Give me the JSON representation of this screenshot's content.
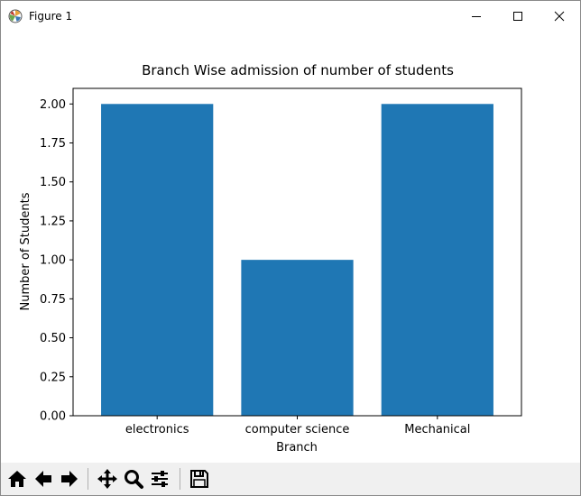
{
  "window": {
    "title": "Figure 1",
    "controls": [
      "minimize",
      "maximize",
      "close"
    ]
  },
  "toolbar": {
    "buttons": [
      {
        "name": "home",
        "icon": "home-icon"
      },
      {
        "name": "back",
        "icon": "arrow-left-icon"
      },
      {
        "name": "forward",
        "icon": "arrow-right-icon"
      },
      {
        "name": "pan",
        "icon": "move-icon"
      },
      {
        "name": "zoom",
        "icon": "magnifier-icon"
      },
      {
        "name": "configure",
        "icon": "sliders-icon"
      },
      {
        "name": "save",
        "icon": "floppy-icon"
      }
    ]
  },
  "colors": {
    "bar": "#1f77b4"
  },
  "chart_data": {
    "type": "bar",
    "title": "Branch Wise admission of number of students",
    "xlabel": "Branch",
    "ylabel": "Number of Students",
    "categories": [
      "electronics",
      "computer science",
      "Mechanical"
    ],
    "values": [
      2,
      1,
      2
    ],
    "ylim": [
      0,
      2.1
    ],
    "yticks": [
      "0.00",
      "0.25",
      "0.50",
      "0.75",
      "1.00",
      "1.25",
      "1.50",
      "1.75",
      "2.00"
    ],
    "grid": false,
    "legend": false
  }
}
